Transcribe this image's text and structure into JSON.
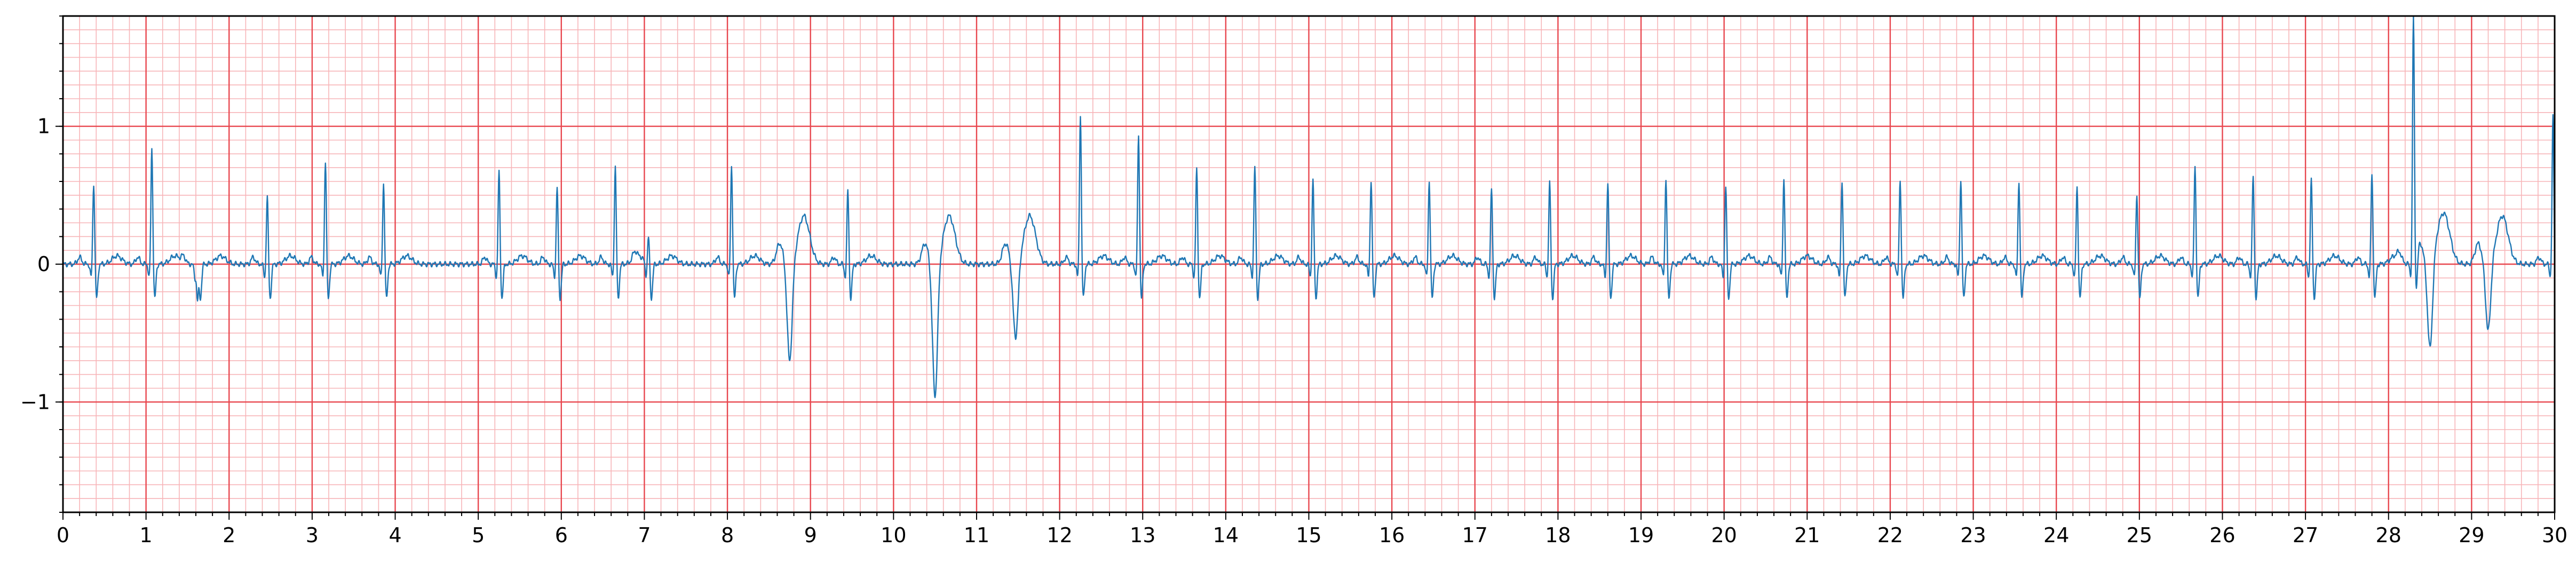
{
  "chart_data": {
    "type": "line",
    "title": "",
    "xlabel": "",
    "ylabel": "",
    "xlim": [
      0,
      30
    ],
    "ylim": [
      -1.8,
      1.8
    ],
    "grid": true,
    "legend": "none",
    "x_ticks": [
      "0",
      "1",
      "2",
      "3",
      "4",
      "5",
      "6",
      "7",
      "8",
      "9",
      "10",
      "11",
      "12",
      "13",
      "14",
      "15",
      "16",
      "17",
      "18",
      "19",
      "20",
      "21",
      "22",
      "23",
      "24",
      "25",
      "26",
      "27",
      "28",
      "29",
      "30"
    ],
    "y_ticks": [
      {
        "value": -1,
        "label": "−1"
      },
      {
        "value": 0,
        "label": "0"
      },
      {
        "value": 1,
        "label": "1"
      }
    ],
    "colors": {
      "signal": "#1f77b4",
      "major_grid": "#e8474f",
      "minor_grid": "#f7b5b8",
      "axes": "#000000"
    },
    "series": [
      {
        "beats": [
          {
            "t": 0.37,
            "amp": 0.6,
            "kind": "n"
          },
          {
            "t": 1.07,
            "amp": 0.85,
            "kind": "n"
          },
          {
            "t": 1.62,
            "amp": -0.25,
            "kind": "n"
          },
          {
            "t": 2.46,
            "amp": 0.5,
            "kind": "n"
          },
          {
            "t": 3.16,
            "amp": 0.76,
            "kind": "n"
          },
          {
            "t": 3.86,
            "amp": 0.6,
            "kind": "n"
          },
          {
            "t": 5.25,
            "amp": 0.68,
            "kind": "n"
          },
          {
            "t": 5.95,
            "amp": 0.57,
            "kind": "n"
          },
          {
            "t": 6.65,
            "amp": 0.72,
            "kind": "n"
          },
          {
            "t": 7.05,
            "amp": 0.2,
            "kind": "n"
          },
          {
            "t": 8.05,
            "amp": 0.73,
            "kind": "n"
          },
          {
            "t": 8.75,
            "amp": -0.72,
            "kind": "v"
          },
          {
            "t": 9.45,
            "amp": 0.55,
            "kind": "n"
          },
          {
            "t": 10.5,
            "amp": -0.98,
            "kind": "v"
          },
          {
            "t": 11.47,
            "amp": -0.55,
            "kind": "v"
          },
          {
            "t": 12.25,
            "amp": 1.1,
            "kind": "n"
          },
          {
            "t": 12.95,
            "amp": 0.95,
            "kind": "n"
          },
          {
            "t": 13.65,
            "amp": 0.7,
            "kind": "n"
          },
          {
            "t": 14.35,
            "amp": 0.72,
            "kind": "n"
          },
          {
            "t": 15.05,
            "amp": 0.62,
            "kind": "n"
          },
          {
            "t": 15.75,
            "amp": 0.62,
            "kind": "n"
          },
          {
            "t": 16.45,
            "amp": 0.62,
            "kind": "n"
          },
          {
            "t": 17.2,
            "amp": 0.56,
            "kind": "n"
          },
          {
            "t": 17.9,
            "amp": 0.6,
            "kind": "n"
          },
          {
            "t": 18.6,
            "amp": 0.6,
            "kind": "n"
          },
          {
            "t": 19.3,
            "amp": 0.63,
            "kind": "n"
          },
          {
            "t": 20.02,
            "amp": 0.58,
            "kind": "n"
          },
          {
            "t": 20.72,
            "amp": 0.63,
            "kind": "n"
          },
          {
            "t": 21.42,
            "amp": 0.62,
            "kind": "n"
          },
          {
            "t": 22.12,
            "amp": 0.62,
            "kind": "n"
          },
          {
            "t": 22.85,
            "amp": 0.62,
            "kind": "n"
          },
          {
            "t": 23.55,
            "amp": 0.62,
            "kind": "n"
          },
          {
            "t": 24.25,
            "amp": 0.57,
            "kind": "n"
          },
          {
            "t": 24.97,
            "amp": 0.52,
            "kind": "n"
          },
          {
            "t": 25.67,
            "amp": 0.72,
            "kind": "n"
          },
          {
            "t": 26.37,
            "amp": 0.65,
            "kind": "n"
          },
          {
            "t": 27.07,
            "amp": 0.62,
            "kind": "n"
          },
          {
            "t": 27.8,
            "amp": 0.67,
            "kind": "n"
          },
          {
            "t": 28.3,
            "amp": 1.8,
            "kind": "n"
          },
          {
            "t": 28.5,
            "amp": -0.65,
            "kind": "v"
          },
          {
            "t": 29.2,
            "amp": -0.5,
            "kind": "v"
          },
          {
            "t": 29.98,
            "amp": 1.08,
            "kind": "n"
          }
        ]
      }
    ]
  }
}
